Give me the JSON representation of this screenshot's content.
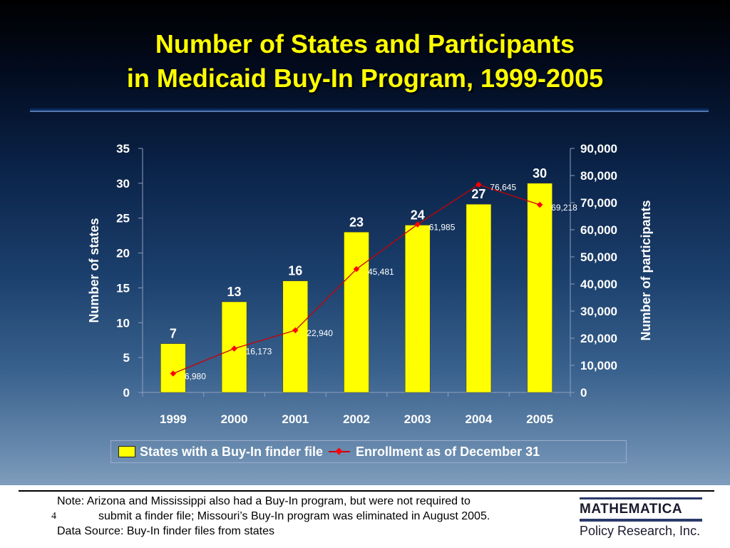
{
  "title_line1": "Number of States and Participants",
  "title_line2": "in Medicaid Buy-In Program, 1999-2005",
  "chart_data": {
    "type": "bar",
    "categories": [
      "1999",
      "2000",
      "2001",
      "2002",
      "2003",
      "2004",
      "2005"
    ],
    "series": [
      {
        "name": "States with a Buy-In finder file",
        "type": "bar",
        "axis": "left",
        "values": [
          7,
          13,
          16,
          23,
          24,
          27,
          30
        ],
        "color": "#ffff00"
      },
      {
        "name": "Enrollment as of December 31",
        "type": "line",
        "axis": "right",
        "values": [
          6980,
          16173,
          22940,
          45481,
          61985,
          76645,
          69218
        ],
        "color": "#ff0000"
      }
    ],
    "bar_labels": [
      "7",
      "13",
      "16",
      "23",
      "24",
      "27",
      "30"
    ],
    "line_labels": [
      "6,980",
      "16,173",
      "22,940",
      "45,481",
      "61,985",
      "76,645",
      "69,218"
    ],
    "ylabel": "Number of states",
    "ylim": [
      0,
      35
    ],
    "y_ticks": [
      "0",
      "5",
      "10",
      "15",
      "20",
      "25",
      "30",
      "35"
    ],
    "y2label": "Number of participants",
    "y2lim": [
      0,
      90000
    ],
    "y2_ticks": [
      "0",
      "10,000",
      "20,000",
      "30,000",
      "40,000",
      "50,000",
      "60,000",
      "70,000",
      "80,000",
      "90,000"
    ],
    "grid": false,
    "legend_position": "bottom"
  },
  "note_line1": "Note: Arizona and Mississippi also had a Buy-In program, but were not required to",
  "note_line2": "submit a finder file; Missouri’s Buy-In program was eliminated in August 2005.",
  "source_line": "Data Source: Buy-In finder files from states",
  "page_number": "4",
  "logo_line1": "MATHEMATICA",
  "logo_line2": "Policy Research, Inc."
}
